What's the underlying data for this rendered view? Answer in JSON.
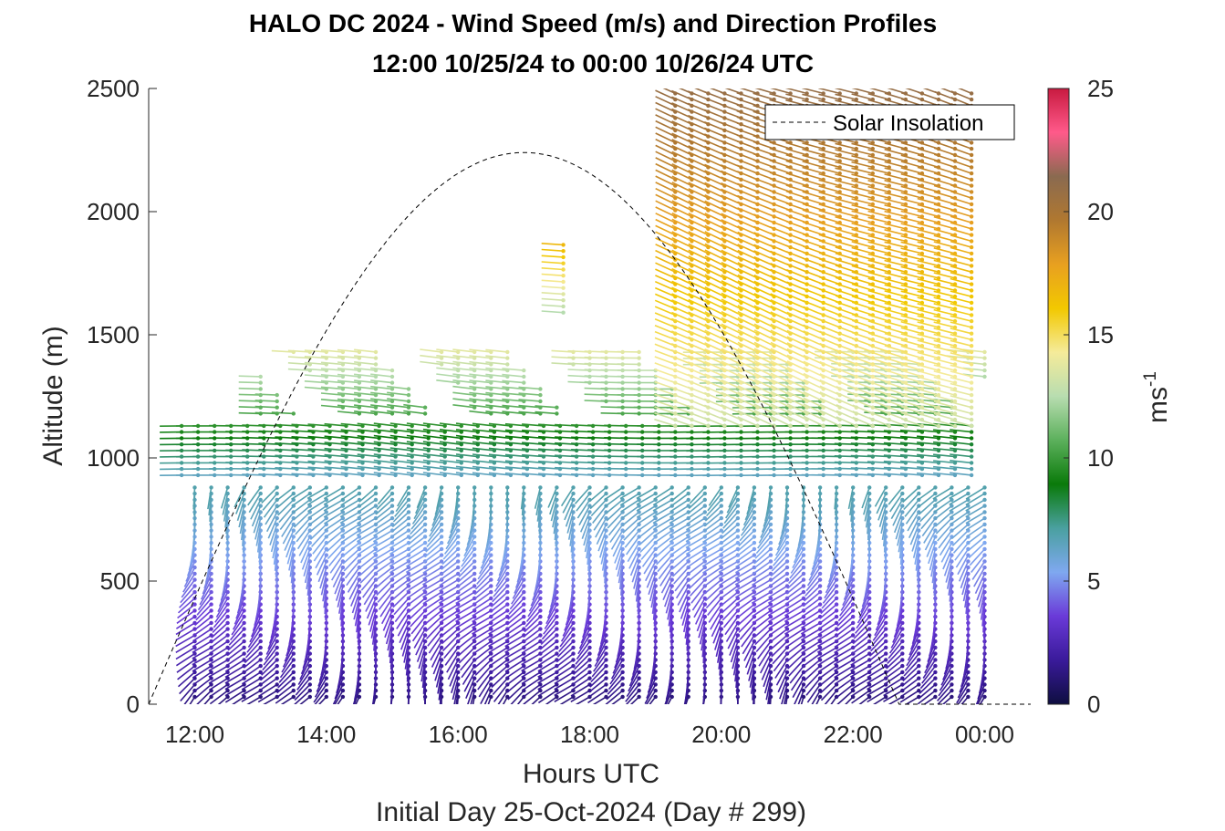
{
  "chart_data": {
    "type": "quiver",
    "title": "HALO DC 2024 - Wind Speed (m/s) and Direction Profiles",
    "subtitle": "12:00 10/25/24 to 00:00 10/26/24  UTC",
    "xlabel": "Hours UTC",
    "xlabel2": "Initial Day 25-Oct-2024 (Day # 299)",
    "ylabel": "Altitude (m)",
    "x_tick_labels": [
      "12:00",
      "14:00",
      "16:00",
      "18:00",
      "20:00",
      "22:00",
      "00:00"
    ],
    "x_tick_values": [
      12,
      14,
      16,
      18,
      20,
      22,
      24
    ],
    "xlim": [
      11.3,
      24.7
    ],
    "y_ticks": [
      0,
      500,
      1000,
      1500,
      2000,
      2500
    ],
    "ylim": [
      0,
      2500
    ],
    "colorbar": {
      "label": "ms",
      "label_exponent": "-1",
      "ticks": [
        0,
        5,
        10,
        15,
        20,
        25
      ],
      "range": [
        0,
        25
      ]
    },
    "legend": {
      "entries": [
        "Solar Insolation"
      ],
      "placement": "top-right"
    },
    "solar_insolation_peak": {
      "hour": 17.0,
      "altitude_m": 2240
    },
    "solar_insolation_zero_hours": [
      11.3,
      22.7
    ],
    "wind_regions": [
      {
        "description": "boundary layer",
        "hours": [
          12.0,
          24.0
        ],
        "altitude_m": [
          0,
          900
        ],
        "speed_ms": [
          1,
          7
        ]
      },
      {
        "description": "low-level jet layer",
        "hours": [
          11.8,
          24.0
        ],
        "altitude_m": [
          900,
          1150
        ],
        "speed_ms": [
          6,
          10
        ]
      },
      {
        "description": "layer top",
        "hours": [
          13.0,
          24.0
        ],
        "altitude_m": [
          1150,
          1450
        ],
        "speed_ms": [
          10,
          14
        ]
      },
      {
        "description": "upper winds",
        "hours": [
          19.3,
          24.0
        ],
        "altitude_m": [
          1100,
          2500
        ],
        "speed_ms": [
          13,
          21
        ]
      },
      {
        "description": "isolated profile",
        "hours": [
          17.6,
          17.6
        ],
        "altitude_m": [
          1560,
          1880
        ],
        "speed_ms": [
          12,
          17
        ]
      }
    ],
    "grid": false
  },
  "colors": {
    "colormap": [
      "#0e0e40",
      "#3a1a9a",
      "#6a3ad8",
      "#7fa8f0",
      "#4aa0a0",
      "#0a7a0a",
      "#5cb05c",
      "#b8ddb0",
      "#f5eb9a",
      "#f2c800",
      "#e8a020",
      "#b07830",
      "#8a6a50",
      "#ff5a8a",
      "#c81a40"
    ],
    "solar_line": "#000000"
  }
}
